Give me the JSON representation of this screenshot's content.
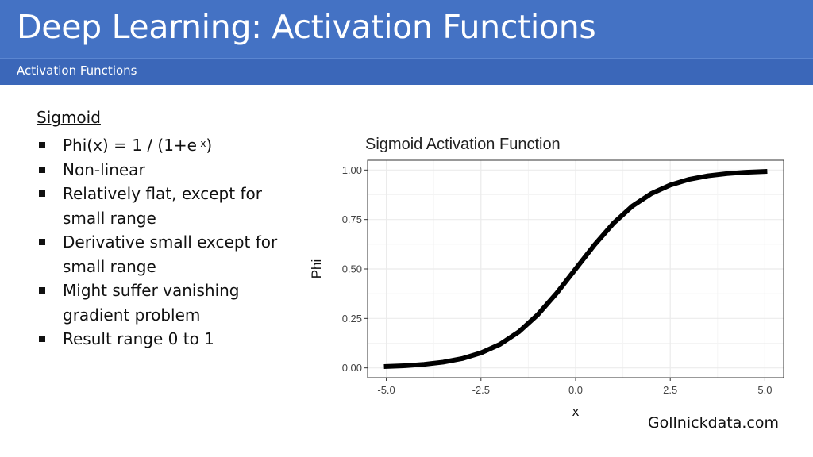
{
  "header": {
    "title": "Deep Learning: Activation Functions",
    "subtitle": "Activation Functions"
  },
  "content": {
    "heading": "Sigmoid",
    "bullets": [
      {
        "parts": [
          "Phi(x) = 1 / (1+e",
          "-x",
          ")"
        ]
      },
      {
        "text": "Non-linear"
      },
      {
        "text": "Relatively flat, except for small range"
      },
      {
        "text": "Derivative small except for small range"
      },
      {
        "text": "Might suffer vanishing gradient problem"
      },
      {
        "text": "Result range 0 to 1"
      }
    ]
  },
  "footer": {
    "credit": "Gollnickdata.com"
  },
  "colors": {
    "header_bg": "#4472c4",
    "subtitle_bg": "#3b67b9",
    "curve": "#000000",
    "grid": "#ebebeb"
  },
  "chart_data": {
    "type": "line",
    "title": "Sigmoid Activation Function",
    "xlabel": "x",
    "ylabel": "Phi",
    "xlim": [
      -5.0,
      5.0
    ],
    "ylim": [
      0.0,
      1.0
    ],
    "x_ticks": [
      -5.0,
      -2.5,
      0.0,
      2.5,
      5.0
    ],
    "x_tick_labels": [
      "-5.0",
      "-2.5",
      "0.0",
      "2.5",
      "5.0"
    ],
    "y_ticks": [
      0.0,
      0.25,
      0.5,
      0.75,
      1.0
    ],
    "y_tick_labels": [
      "0.00",
      "0.25",
      "0.50",
      "0.75",
      "1.00"
    ],
    "grid": true,
    "series": [
      {
        "x": [
          -5.0,
          -4.5,
          -4.0,
          -3.5,
          -3.0,
          -2.5,
          -2.0,
          -1.5,
          -1.0,
          -0.5,
          0.0,
          0.5,
          1.0,
          1.5,
          2.0,
          2.5,
          3.0,
          3.5,
          4.0,
          4.5,
          5.0
        ],
        "values": [
          0.007,
          0.011,
          0.018,
          0.029,
          0.047,
          0.076,
          0.119,
          0.182,
          0.269,
          0.378,
          0.5,
          0.622,
          0.731,
          0.818,
          0.881,
          0.924,
          0.953,
          0.971,
          0.982,
          0.989,
          0.993
        ]
      }
    ]
  }
}
